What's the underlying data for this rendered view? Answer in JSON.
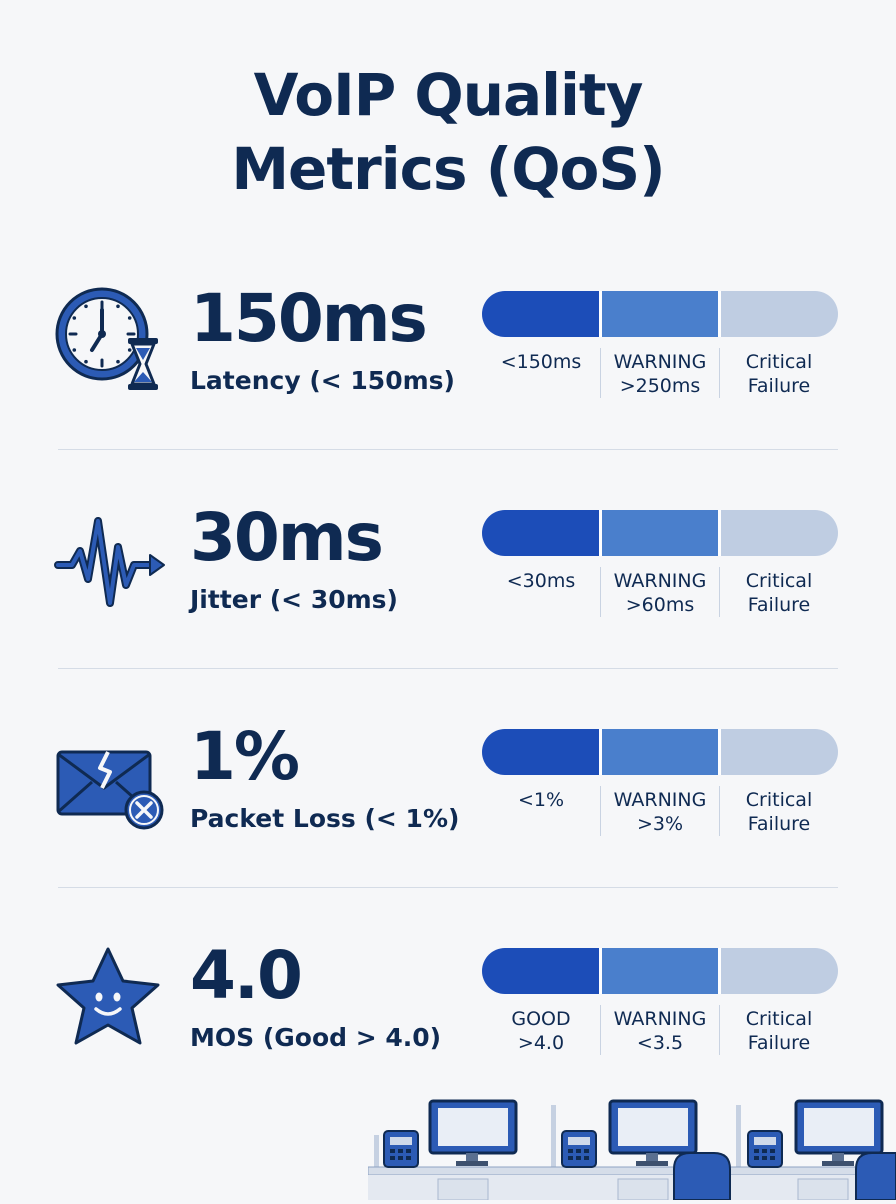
{
  "title": {
    "line1": "VoIP Quality",
    "line2": "Metrics (QoS)"
  },
  "colors": {
    "navy": "#0f2a52",
    "good": "#1c4db8",
    "warning": "#4a7fcc",
    "critical": "#bfcde2"
  },
  "metrics": [
    {
      "icon": "clock-hourglass-icon",
      "value": "150ms",
      "label": "Latency (< 150ms)",
      "scale": [
        {
          "line1": "<150ms",
          "line2": ""
        },
        {
          "line1": "WARNING",
          "line2": ">250ms"
        },
        {
          "line1": "Critical",
          "line2": "Failure"
        }
      ]
    },
    {
      "icon": "waveform-arrow-icon",
      "value": "30ms",
      "label": "Jitter (< 30ms)",
      "scale": [
        {
          "line1": "<30ms",
          "line2": ""
        },
        {
          "line1": "WARNING",
          "line2": ">60ms"
        },
        {
          "line1": "Critical",
          "line2": "Failure"
        }
      ]
    },
    {
      "icon": "broken-envelope-icon",
      "value": "1%",
      "label": "Packet Loss (< 1%)",
      "scale": [
        {
          "line1": "<1%",
          "line2": ""
        },
        {
          "line1": "WARNING",
          "line2": ">3%"
        },
        {
          "line1": "Critical",
          "line2": "Failure"
        }
      ]
    },
    {
      "icon": "smiling-star-icon",
      "value": "4.0",
      "label": "MOS (Good > 4.0)",
      "scale": [
        {
          "line1": "GOOD",
          "line2": ">4.0"
        },
        {
          "line1": "WARNING",
          "line2": "<3.5"
        },
        {
          "line1": "Critical",
          "line2": "Failure"
        }
      ]
    }
  ],
  "illustration": "office-desks-illustration"
}
